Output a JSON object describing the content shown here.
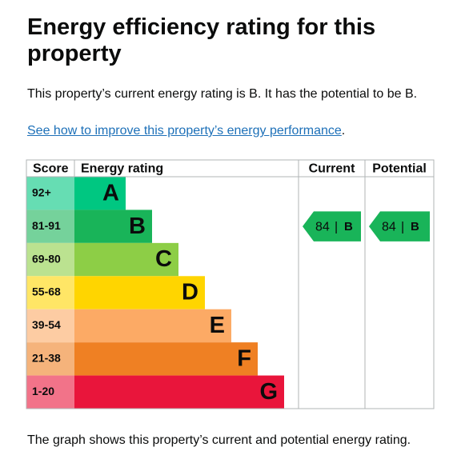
{
  "header": {
    "title": "Energy efficiency rating for this property"
  },
  "intro": "This property’s current energy rating is B. It has the potential to be B.",
  "link": "See how to improve this property’s energy performance",
  "link_suffix": ".",
  "table": {
    "headers": [
      "Score",
      "Energy rating",
      "Current",
      "Potential"
    ],
    "rows": [
      {
        "score": "92+",
        "band": "A"
      },
      {
        "score": "81-91",
        "band": "B"
      },
      {
        "score": "69-80",
        "band": "C"
      },
      {
        "score": "55-68",
        "band": "D"
      },
      {
        "score": "39-54",
        "band": "E"
      },
      {
        "score": "21-38",
        "band": "F"
      },
      {
        "score": "1-20",
        "band": "G"
      }
    ],
    "current": {
      "score": 84,
      "separator": "|",
      "band": "B"
    },
    "potential": {
      "score": 84,
      "separator": "|",
      "band": "B"
    }
  },
  "footer": "The graph shows this property’s current and potential energy rating."
}
